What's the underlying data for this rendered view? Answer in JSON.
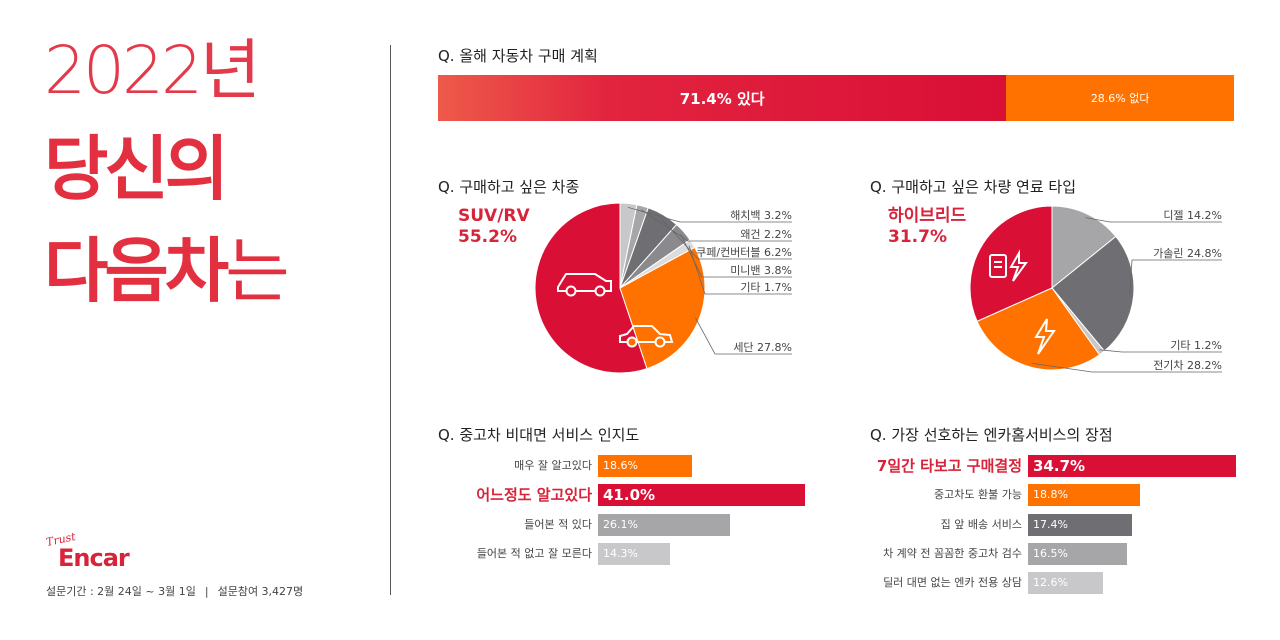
{
  "hero": {
    "year": "2022년",
    "line2": "당신의",
    "line3_bold": "다음차",
    "line3_light": "는"
  },
  "brand": {
    "tagline": "Trust",
    "name": "Encar"
  },
  "footer": {
    "period": "설문기간 : 2월 24일 ~ 3월 1일",
    "separator": "|",
    "participants": "설문참여 3,427명"
  },
  "colors": {
    "red": "#d90f36",
    "orange": "#ff7200",
    "gray_dark": "#6e6e73",
    "gray_mid": "#a6a6a8",
    "gray_light": "#c8c8ca"
  },
  "chart_data": [
    {
      "type": "bar",
      "orientation": "horizontal-stacked",
      "title": "Q. 올해 자동차 구매 계획",
      "series": [
        {
          "name": "있다",
          "value": 71.4,
          "label": "71.4% 있다",
          "color": "#d90f36"
        },
        {
          "name": "없다",
          "value": 28.6,
          "label": "28.6% 없다",
          "color": "#ff7200"
        }
      ]
    },
    {
      "type": "pie",
      "title": "Q. 구매하고 싶은 차종",
      "highlight": {
        "name": "SUV/RV",
        "value_label": "55.2%"
      },
      "slices": [
        {
          "name": "SUV/RV",
          "value": 55.2,
          "color": "#d90f36",
          "label": ""
        },
        {
          "name": "해치백",
          "value": 3.2,
          "color": "#c8c8ca",
          "label": "해치백 3.2%"
        },
        {
          "name": "왜건",
          "value": 2.2,
          "color": "#a6a6a8",
          "label": "왜건 2.2%"
        },
        {
          "name": "쿠페/컨버터블",
          "value": 6.2,
          "color": "#6e6e73",
          "label": "쿠페/컨버터블 6.2%"
        },
        {
          "name": "미니밴",
          "value": 3.8,
          "color": "#8a8a8e",
          "label": "미니밴 3.8%"
        },
        {
          "name": "기타",
          "value": 1.7,
          "color": "#dcdcde",
          "label": "기타 1.7%"
        },
        {
          "name": "세단",
          "value": 27.8,
          "color": "#ff7200",
          "label": "세단 27.8%"
        }
      ]
    },
    {
      "type": "pie",
      "title": "Q. 구매하고 싶은 차량 연료 타입",
      "highlight": {
        "name": "하이브리드",
        "value_label": "31.7%"
      },
      "slices": [
        {
          "name": "하이브리드",
          "value": 31.7,
          "color": "#d90f36",
          "label": ""
        },
        {
          "name": "디젤",
          "value": 14.2,
          "color": "#a6a6a8",
          "label": "디젤 14.2%"
        },
        {
          "name": "가솔린",
          "value": 24.8,
          "color": "#6e6e73",
          "label": "가솔린 24.8%"
        },
        {
          "name": "기타",
          "value": 1.2,
          "color": "#c8c8ca",
          "label": "기타 1.2%"
        },
        {
          "name": "전기차",
          "value": 28.2,
          "color": "#ff7200",
          "label": "전기차 28.2%"
        }
      ]
    },
    {
      "type": "bar",
      "orientation": "horizontal",
      "title": "Q. 중고차 비대면 서비스 인지도",
      "categories": [
        "매우 잘 알고있다",
        "어느정도 알고있다",
        "들어본 적 있다",
        "들어본 적 없고 잘 모른다"
      ],
      "values": [
        18.6,
        41.0,
        26.1,
        14.3
      ],
      "value_labels": [
        "18.6%",
        "41.0%",
        "26.1%",
        "14.3%"
      ],
      "colors": [
        "#ff7200",
        "#d90f36",
        "#a6a6a8",
        "#c8c8ca"
      ],
      "highlight_index": 1
    },
    {
      "type": "bar",
      "orientation": "horizontal",
      "title": "Q. 가장 선호하는 엔카홈서비스의 장점",
      "categories": [
        "7일간 타보고 구매결정",
        "중고차도 환불 가능",
        "집 앞 배송 서비스",
        "차 계약 전 꼼꼼한 중고차 검수",
        "딜러 대면 없는 엔카 전용 상담"
      ],
      "values": [
        34.7,
        18.8,
        17.4,
        16.5,
        12.6
      ],
      "value_labels": [
        "34.7%",
        "18.8%",
        "17.4%",
        "16.5%",
        "12.6%"
      ],
      "colors": [
        "#d90f36",
        "#ff7200",
        "#6e6e73",
        "#a6a6a8",
        "#c8c8ca"
      ],
      "highlight_index": 0
    }
  ]
}
